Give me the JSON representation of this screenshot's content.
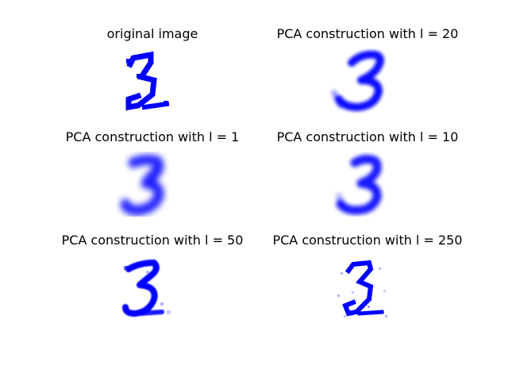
{
  "figure": {
    "ink_color": "#0000ff",
    "panels": [
      {
        "title": "original image",
        "glyph": "3",
        "rendering": "sharp"
      },
      {
        "title": "PCA construction with l = 20",
        "glyph": "3",
        "rendering": "blurry"
      },
      {
        "title": "PCA construction with l = 1",
        "glyph": "3",
        "rendering": "very-blurry"
      },
      {
        "title": "PCA construction with l = 10",
        "glyph": "3",
        "rendering": "blurry"
      },
      {
        "title": "PCA construction with l = 50",
        "glyph": "3",
        "rendering": "mostly-sharp"
      },
      {
        "title": "PCA construction with l = 250",
        "glyph": "3",
        "rendering": "sharp-noisy"
      }
    ]
  }
}
